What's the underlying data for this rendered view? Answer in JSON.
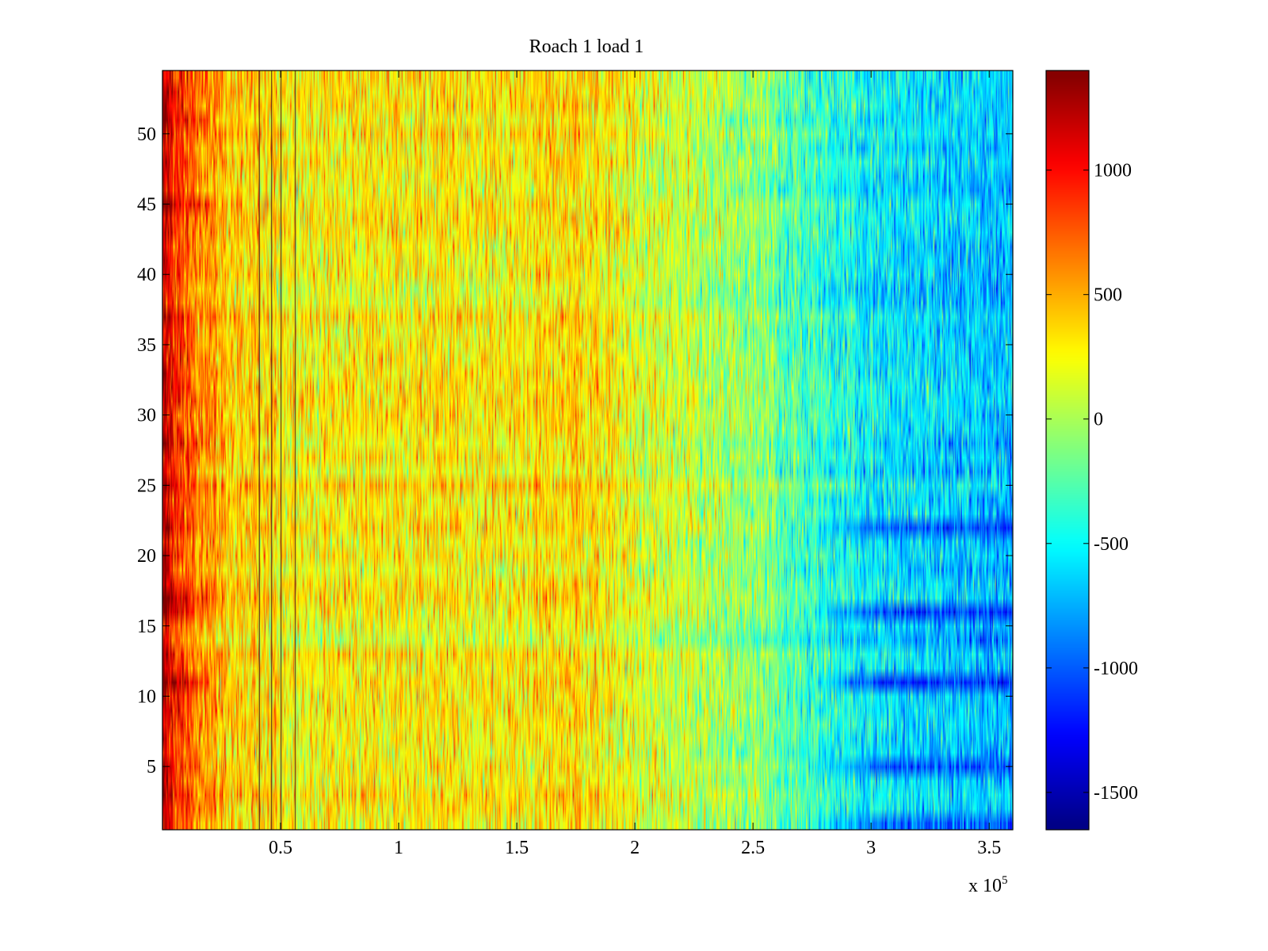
{
  "chart_data": {
    "type": "heatmap",
    "title": "Roach 1 load 1",
    "xlabel": "",
    "ylabel": "",
    "x_exponent_label": {
      "base": "x 10",
      "exponent": "5"
    },
    "x_scale_factor": 100000,
    "xlim": [
      0,
      3.6
    ],
    "ylim": [
      0.5,
      54.5
    ],
    "rows": 54,
    "x_ticks": [
      0.5,
      1,
      1.5,
      2,
      2.5,
      3,
      3.5
    ],
    "x_tick_labels": [
      "0.5",
      "1",
      "1.5",
      "2",
      "2.5",
      "3",
      "3.5"
    ],
    "y_ticks": [
      5,
      10,
      15,
      20,
      25,
      30,
      35,
      40,
      45,
      50
    ],
    "y_tick_labels": [
      "5",
      "10",
      "15",
      "20",
      "25",
      "30",
      "35",
      "40",
      "45",
      "50"
    ],
    "colorbar": {
      "colormap": "jet",
      "clim": [
        -1650,
        1400
      ],
      "ticks": [
        1000,
        500,
        0,
        -500,
        -1000,
        -1500
      ],
      "tick_labels": [
        "1000",
        "500",
        "0",
        "-500",
        "-1000",
        "-1500"
      ]
    },
    "trend_profile": {
      "x": [
        0,
        0.1,
        0.3,
        0.6,
        1.0,
        1.5,
        1.75,
        2.0,
        2.5,
        2.8,
        3.1,
        3.6
      ],
      "value": [
        1150,
        750,
        380,
        260,
        300,
        280,
        380,
        160,
        -100,
        -380,
        -580,
        -700
      ]
    },
    "dark_vertical_lines_x": [
      0.41,
      0.46,
      0.5,
      0.56
    ],
    "strong_negative_rows": [
      {
        "row": 22,
        "value": -1050
      },
      {
        "row": 16,
        "value": -1100
      },
      {
        "row": 11,
        "value": -1150
      },
      {
        "row": 5,
        "value": -1000
      },
      {
        "row": 1,
        "value": -950
      }
    ],
    "strong_positive_rows_left": [
      11,
      16,
      17,
      28,
      45,
      51
    ]
  }
}
